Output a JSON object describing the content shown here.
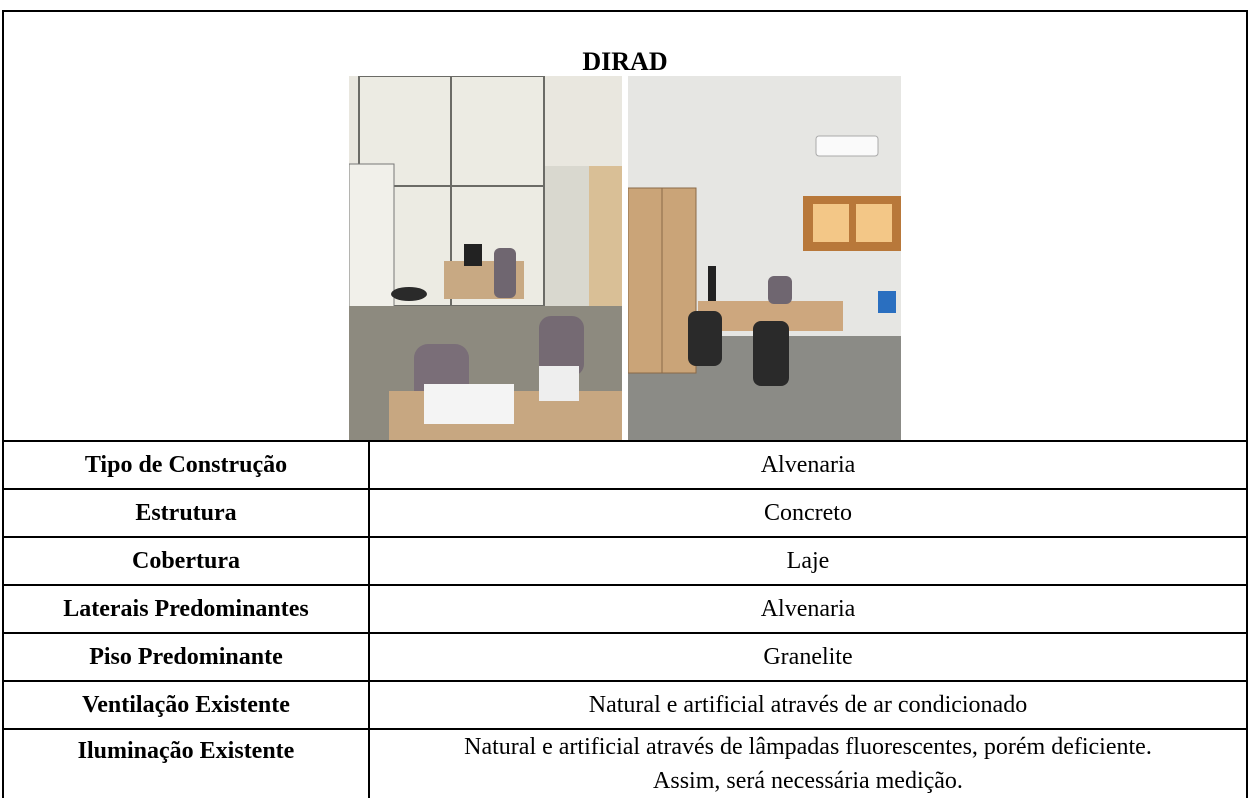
{
  "header": {
    "title": "DIRAD"
  },
  "table": {
    "rows": [
      [
        "Tipo de Construção",
        "Alvenaria"
      ],
      [
        "Estrutura",
        "Concreto"
      ],
      [
        "Cobertura",
        "Laje"
      ],
      [
        "Laterais Predominantes",
        "Alvenaria"
      ],
      [
        "Piso Predominante",
        "Granelite"
      ],
      [
        "Ventilação Existente",
        "Natural e artificial através de ar condicionado"
      ],
      [
        "Iluminação Existente",
        "Natural e artificial através de lâmpadas fluorescentes, porém deficiente. Assim, será necessária medição."
      ]
    ]
  }
}
